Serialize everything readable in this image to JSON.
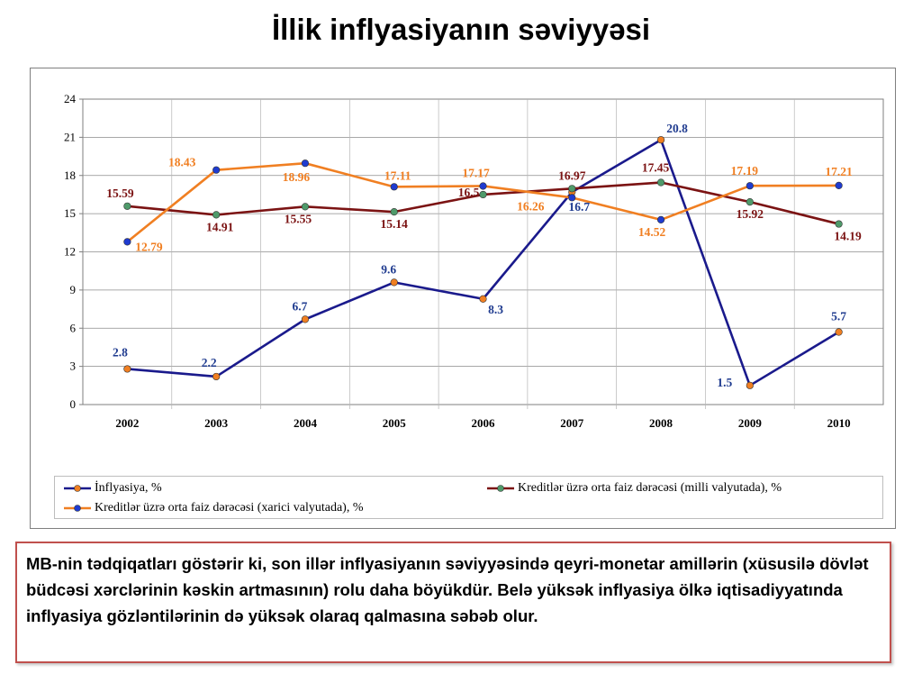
{
  "title": "İllik inflyasiyanın səviyyəsi",
  "note": "MB-nin tədqiqatları göstərir ki, son illər inflyasiyanın səviyyəsində qeyri-monetar amillərin (xüsusilə dövlət büdcəsi xərclərinin kəskin artmasının) rolu daha böyükdür. Belə yüksək inflyasiya ölkə iqtisadiyyatında inflyasiya gözləntilərinin də yüksək olaraq qalmasına səbəb olur.",
  "chart_data": {
    "type": "line",
    "categories": [
      "2002",
      "2003",
      "2004",
      "2005",
      "2006",
      "2007",
      "2008",
      "2009",
      "2010"
    ],
    "ylim": [
      0,
      24
    ],
    "yticks": [
      "0",
      "3",
      "6",
      "9",
      "12",
      "15",
      "18",
      "21",
      "24"
    ],
    "grid": true,
    "legend_position": "bottom",
    "series": [
      {
        "name": "İnflyasiya, %",
        "values": [
          2.8,
          2.2,
          6.7,
          9.6,
          8.3,
          16.7,
          20.8,
          1.5,
          5.7
        ],
        "labels": [
          "2.8",
          "2.2",
          "6.7",
          "9.6",
          "8.3",
          "16.7",
          "20.8",
          "1.5",
          "5.7"
        ],
        "line_color": "#1a1a8c",
        "marker_color": "#f07f22",
        "label_color": "#1f3b8f"
      },
      {
        "name": "Kreditlər üzrə orta faiz dərəcəsi (milli valyutada), %",
        "values": [
          15.59,
          14.91,
          15.55,
          15.14,
          16.5,
          16.97,
          17.45,
          15.92,
          14.19
        ],
        "labels": [
          "15.59",
          "14.91",
          "15.55",
          "15.14",
          "16.5",
          "16.97",
          "17.45",
          "15.92",
          "14.19"
        ],
        "line_color": "#7b1313",
        "marker_color": "#4f9a6a",
        "label_color": "#7b1313"
      },
      {
        "name": "Kreditlər üzrə orta faiz dərəcəsi (xarici valyutada), %",
        "values": [
          12.79,
          18.43,
          18.96,
          17.11,
          17.17,
          16.26,
          14.52,
          17.19,
          17.21
        ],
        "labels": [
          "12.79",
          "18.43",
          "18.96",
          "17.11",
          "17.17",
          "16.26",
          "14.52",
          "17.19",
          "17.21"
        ],
        "line_color": "#f07f22",
        "marker_color": "#1f3bd0",
        "label_color": "#f07f22"
      }
    ]
  }
}
